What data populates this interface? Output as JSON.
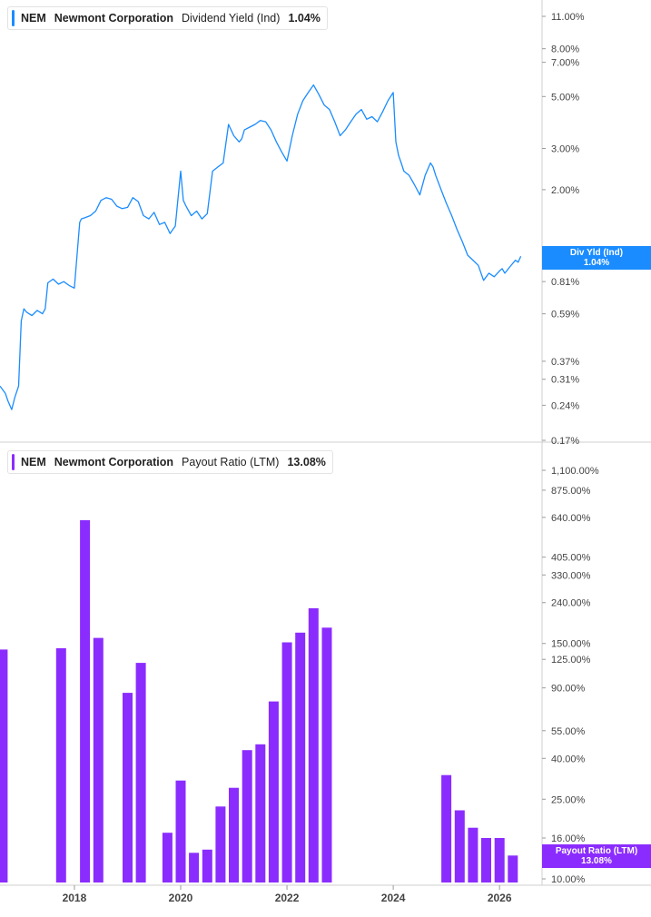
{
  "chart_data": [
    {
      "type": "line",
      "legend": {
        "ticker": "NEM",
        "company": "Newmont Corporation",
        "metric": "Dividend Yield (Ind)",
        "value": "1.04%"
      },
      "badge": {
        "label": "Div Yld (Ind)",
        "value": "1.04%"
      },
      "y_scale": "log",
      "y_ticks": [
        0.17,
        0.24,
        0.31,
        0.37,
        0.59,
        0.81,
        1.0,
        2.0,
        3.0,
        5.0,
        7.0,
        8.0,
        11.0
      ],
      "y_tick_labels": [
        "0.17%",
        "0.24%",
        "0.31%",
        "0.37%",
        "0.59%",
        "0.81%",
        "1.00%",
        "2.00%",
        "3.00%",
        "5.00%",
        "7.00%",
        "8.00%",
        "11.00%"
      ],
      "series": [
        {
          "color": "#1a8cff",
          "x": [
            2016.6,
            2016.7,
            2016.75,
            2016.82,
            2016.88,
            2016.95,
            2017.0,
            2017.05,
            2017.1,
            2017.2,
            2017.3,
            2017.4,
            2017.45,
            2017.5,
            2017.6,
            2017.7,
            2017.8,
            2017.9,
            2018.0,
            2018.1,
            2018.13,
            2018.2,
            2018.3,
            2018.4,
            2018.5,
            2018.6,
            2018.7,
            2018.8,
            2018.9,
            2019.0,
            2019.1,
            2019.2,
            2019.3,
            2019.4,
            2019.5,
            2019.6,
            2019.7,
            2019.8,
            2019.9,
            2020.0,
            2020.05,
            2020.1,
            2020.2,
            2020.3,
            2020.4,
            2020.5,
            2020.6,
            2020.7,
            2020.8,
            2020.9,
            2021.0,
            2021.1,
            2021.15,
            2021.2,
            2021.3,
            2021.4,
            2021.5,
            2021.6,
            2021.7,
            2021.8,
            2021.9,
            2022.0,
            2022.1,
            2022.2,
            2022.3,
            2022.4,
            2022.5,
            2022.6,
            2022.7,
            2022.8,
            2022.9,
            2023.0,
            2023.1,
            2023.2,
            2023.3,
            2023.4,
            2023.5,
            2023.6,
            2023.7,
            2023.8,
            2023.9,
            2024.0,
            2024.05,
            2024.1,
            2024.15,
            2024.2,
            2024.3,
            2024.4,
            2024.5,
            2024.6,
            2024.7,
            2024.75,
            2024.8,
            2024.9,
            2025.0,
            2025.1,
            2025.2,
            2025.3,
            2025.4,
            2025.5,
            2025.6,
            2025.7,
            2025.8,
            2025.9,
            2026.0,
            2026.05,
            2026.1,
            2026.2,
            2026.3,
            2026.35,
            2026.4
          ],
          "y": [
            0.29,
            0.27,
            0.25,
            0.23,
            0.26,
            0.29,
            0.55,
            0.62,
            0.6,
            0.58,
            0.61,
            0.59,
            0.62,
            0.8,
            0.83,
            0.79,
            0.81,
            0.78,
            0.76,
            1.45,
            1.5,
            1.52,
            1.55,
            1.62,
            1.8,
            1.85,
            1.82,
            1.7,
            1.66,
            1.68,
            1.85,
            1.78,
            1.55,
            1.5,
            1.6,
            1.42,
            1.45,
            1.3,
            1.4,
            2.4,
            1.8,
            1.7,
            1.55,
            1.62,
            1.5,
            1.58,
            2.4,
            2.5,
            2.6,
            3.8,
            3.4,
            3.2,
            3.3,
            3.6,
            3.7,
            3.8,
            3.95,
            3.9,
            3.6,
            3.2,
            2.9,
            2.65,
            3.4,
            4.2,
            4.8,
            5.2,
            5.6,
            5.1,
            4.6,
            4.4,
            3.9,
            3.4,
            3.6,
            3.9,
            4.2,
            4.4,
            4.0,
            4.1,
            3.9,
            4.3,
            4.8,
            5.2,
            3.2,
            2.8,
            2.6,
            2.4,
            2.3,
            2.1,
            1.9,
            2.3,
            2.6,
            2.5,
            2.3,
            2.0,
            1.75,
            1.55,
            1.35,
            1.2,
            1.05,
            1.0,
            0.95,
            0.82,
            0.88,
            0.85,
            0.9,
            0.92,
            0.88,
            0.94,
            1.0,
            0.98,
            1.04
          ]
        }
      ],
      "x_ticks": [
        2018,
        2020,
        2022,
        2024,
        2026
      ],
      "x_tick_labels": [
        "2018",
        "2020",
        "2022",
        "2024",
        "2026"
      ],
      "x_range": [
        2016.6,
        2026.8
      ],
      "grid": false
    },
    {
      "type": "bar",
      "legend": {
        "ticker": "NEM",
        "company": "Newmont Corporation",
        "metric": "Payout Ratio (LTM)",
        "value": "13.08%"
      },
      "badge": {
        "label": "Payout Ratio (LTM)",
        "value": "13.08%"
      },
      "y_scale": "log",
      "y_ticks": [
        10,
        16,
        25,
        40,
        55,
        90,
        125,
        150,
        240,
        330,
        405,
        640,
        875,
        1100
      ],
      "y_tick_labels": [
        "10.00%",
        "16.00%",
        "25.00%",
        "40.00%",
        "55.00%",
        "90.00%",
        "125.00%",
        "150.00%",
        "240.00%",
        "330.00%",
        "405.00%",
        "640.00%",
        "875.00%",
        "1,100.00%"
      ],
      "series": [
        {
          "color": "#8b2cff",
          "x": [
            2016.65,
            2017.75,
            2018.2,
            2018.45,
            2019.0,
            2019.25,
            2019.75,
            2020.0,
            2020.25,
            2020.5,
            2020.75,
            2021.0,
            2021.25,
            2021.5,
            2021.75,
            2022.0,
            2022.25,
            2022.5,
            2022.75,
            2025.0,
            2025.25,
            2025.5,
            2025.75,
            2026.0,
            2026.25
          ],
          "y": [
            140,
            142,
            620,
            160,
            85,
            120,
            17,
            31,
            13.5,
            14,
            23,
            28.5,
            44,
            47,
            77,
            152,
            170,
            225,
            180,
            33,
            22,
            18,
            16,
            16,
            13.08
          ]
        }
      ],
      "x_ticks": [
        2018,
        2020,
        2022,
        2024,
        2026
      ],
      "x_tick_labels": [
        "2018",
        "2020",
        "2022",
        "2024",
        "2026"
      ],
      "x_range": [
        2016.6,
        2026.8
      ],
      "grid": false
    }
  ]
}
